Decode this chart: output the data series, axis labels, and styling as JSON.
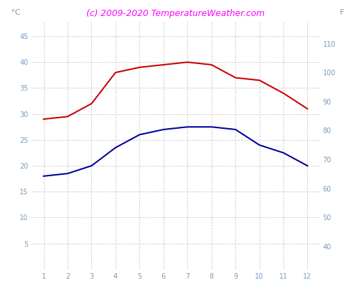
{
  "months": [
    1,
    2,
    3,
    4,
    5,
    6,
    7,
    8,
    9,
    10,
    11,
    12
  ],
  "red_line": [
    29,
    29.5,
    32,
    38,
    39,
    39.5,
    40,
    39.5,
    37,
    36.5,
    34,
    31
  ],
  "blue_line": [
    18,
    18.5,
    20,
    23.5,
    26,
    27,
    27.5,
    27.5,
    27,
    24,
    22.5,
    20
  ],
  "ylabel_left": "°C",
  "ylabel_right": "F",
  "ylim_left": [
    0,
    48
  ],
  "ylim_right": [
    32,
    118
  ],
  "yticks_left": [
    5,
    10,
    15,
    20,
    25,
    30,
    35,
    40,
    45
  ],
  "yticks_right": [
    40,
    50,
    60,
    70,
    80,
    90,
    100,
    110
  ],
  "xlim": [
    0.5,
    12.5
  ],
  "xticks": [
    1,
    2,
    3,
    4,
    5,
    6,
    7,
    8,
    9,
    10,
    11,
    12
  ],
  "title": "(c) 2009-2020 TemperatureWeather.com",
  "title_color": "#ff00ff",
  "title_fontsize": 9,
  "red_color": "#cc0000",
  "blue_color": "#000099",
  "tick_label_color": "#7799bb",
  "grid_color": "#cccccc",
  "background_color": "#ffffff",
  "ylabel_left_color": "#7799bb",
  "ylabel_right_color": "#7799bb"
}
